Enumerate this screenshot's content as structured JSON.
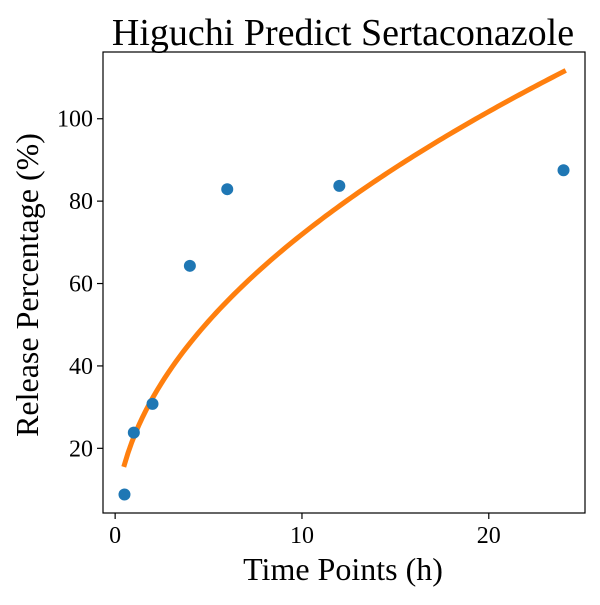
{
  "chart_data": {
    "type": "scatter",
    "title": "Higuchi Predict Sertaconazole",
    "xlabel": "Time Points (h)",
    "ylabel": "Release Percentage (%)",
    "xlim": [
      -0.65,
      25.15
    ],
    "ylim": [
      4.3,
      116.2
    ],
    "xticks": [
      0,
      10,
      20
    ],
    "yticks": [
      20,
      40,
      60,
      80,
      100
    ],
    "grid": false,
    "series": [
      {
        "kind": "scatter",
        "color": "#1f77b4",
        "x": [
          0.5,
          1,
          2,
          4,
          6,
          12,
          24
        ],
        "y": [
          8.8,
          23.8,
          30.8,
          64.3,
          82.9,
          83.7,
          87.5
        ]
      },
      {
        "kind": "line",
        "color": "#ff7f0e",
        "model": "y = k * sqrt(t)",
        "k": 22.75,
        "x": [
          0.5,
          1,
          2,
          4,
          6,
          8,
          10,
          12,
          14,
          16,
          18,
          20,
          22,
          24
        ],
        "y": [
          16.1,
          22.8,
          32.2,
          45.5,
          55.7,
          64.3,
          71.9,
          78.8,
          85.1,
          91.0,
          96.5,
          101.7,
          106.7,
          111.5
        ]
      }
    ]
  }
}
